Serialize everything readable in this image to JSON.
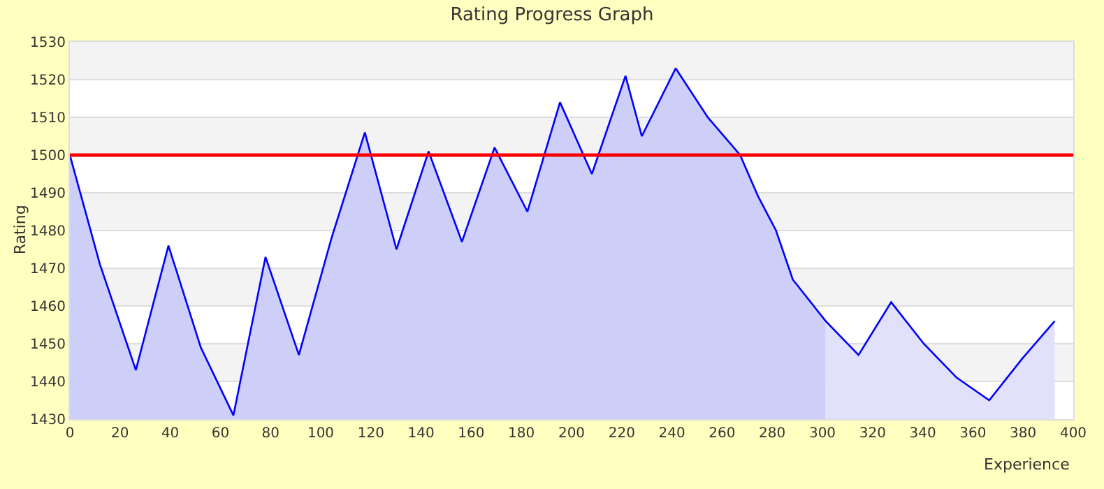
{
  "chart_data": {
    "type": "area",
    "title": "Rating Progress Graph",
    "xlabel": "Experience",
    "ylabel": "Rating",
    "series": [
      {
        "type": "line",
        "color": "#0000ff",
        "x": [
          0,
          12,
          26.3,
          39.3,
          52.2,
          65.2,
          78,
          91.3,
          104.3,
          117.6,
          130.2,
          143,
          156.3,
          169.3,
          182.4,
          195.4,
          208.1,
          221.5,
          228,
          241.5,
          254.3,
          267.2,
          274.4,
          281.5,
          288.2,
          301.3,
          314.4,
          327.4,
          340.4,
          353.5,
          366.5,
          379.6,
          392.6
        ],
        "values": [
          1500,
          1471,
          1443,
          1476,
          1449,
          1431,
          1473,
          1447,
          1478,
          1506,
          1475,
          1501,
          1477,
          1502,
          1485,
          1514,
          1495,
          1521,
          1505,
          1523,
          1510,
          1500,
          1489,
          1480,
          1467,
          1456,
          1447,
          1461,
          1450,
          1441,
          1435,
          1446,
          1456
        ]
      },
      {
        "color": "#cdcff9",
        "x": [
          0,
          12,
          26.3,
          39.3,
          52.2,
          65.2,
          78,
          91.3,
          104.3,
          117.6,
          130.2,
          143,
          156.3,
          169.3,
          182.4,
          195.4,
          208.1,
          221.5,
          228,
          241.5,
          254.3,
          267.2,
          274.4,
          281.5,
          288.2,
          301.3
        ],
        "values": [
          1500,
          1471,
          1443,
          1476,
          1449,
          1431,
          1473,
          1447,
          1478,
          1506,
          1475,
          1501,
          1477,
          1502,
          1485,
          1514,
          1495,
          1521,
          1505,
          1523,
          1510,
          1500,
          1489,
          1480,
          1467,
          1456
        ]
      },
      {
        "color": "#e1e1fb",
        "x": [
          301.3,
          314.4,
          327.4,
          340.4,
          353.5,
          366.5,
          379.6,
          392.6
        ],
        "values": [
          1456,
          1447,
          1461,
          1450,
          1441,
          1435,
          1446,
          1456
        ]
      }
    ],
    "xlim": [
      0,
      400
    ],
    "xticks": [
      0,
      20,
      40,
      60,
      80,
      100,
      120,
      140,
      160,
      180,
      200,
      220,
      240,
      260,
      280,
      300,
      320,
      340,
      360,
      380,
      400
    ],
    "ylim": [
      1430,
      1530
    ],
    "yticks": [
      1430,
      1440,
      1450,
      1460,
      1470,
      1480,
      1490,
      1500,
      1510,
      1520,
      1530
    ],
    "ref_lines": [
      {
        "axis": "y",
        "value": 1500,
        "color": "#ff0000"
      }
    ],
    "grid": "y"
  }
}
